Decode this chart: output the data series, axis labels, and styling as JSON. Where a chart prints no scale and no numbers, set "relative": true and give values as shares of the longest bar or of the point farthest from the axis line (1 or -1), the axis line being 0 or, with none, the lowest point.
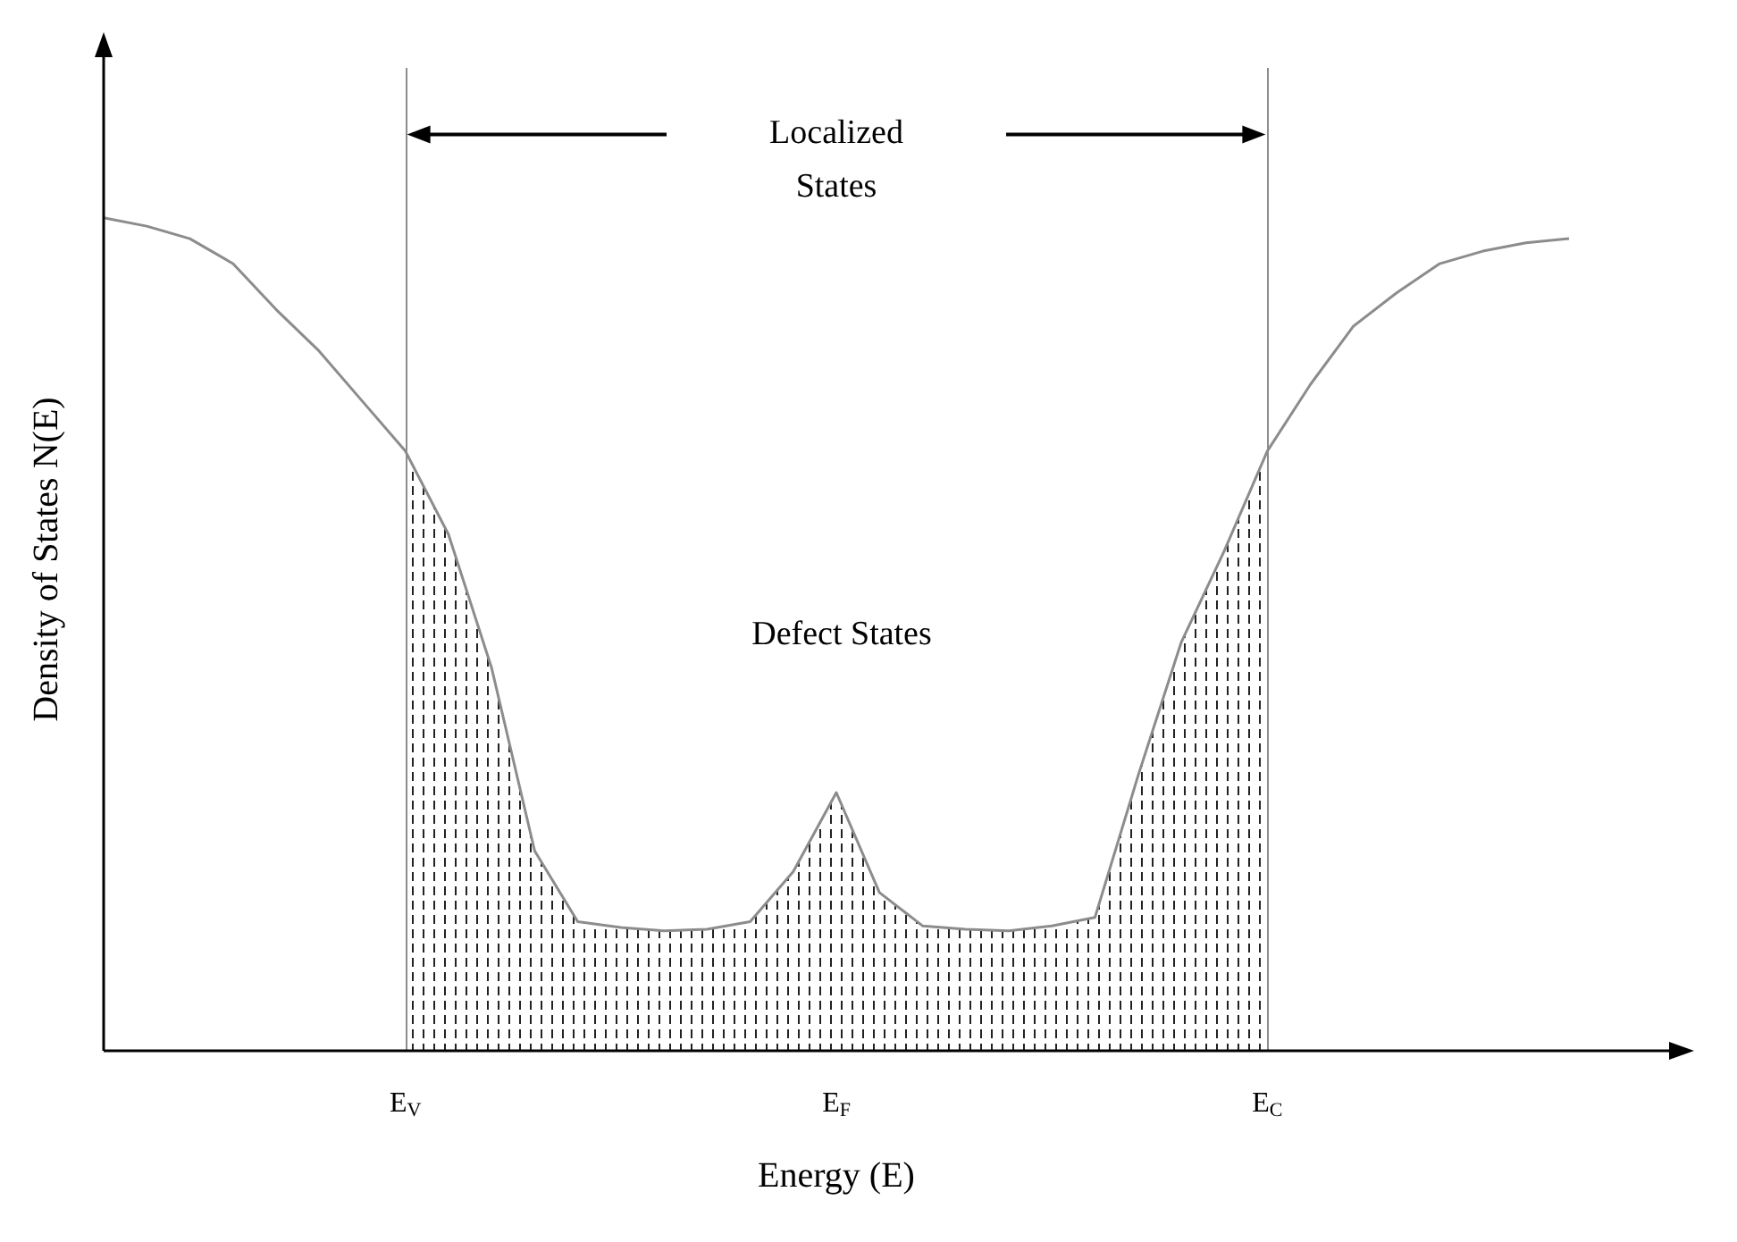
{
  "chart_data": {
    "type": "line",
    "relative": true,
    "xlabel": "Energy (E)",
    "ylabel": "Density of States N(E)",
    "categories": [
      null,
      null,
      null,
      null,
      null,
      null,
      null,
      "E$_{V}$",
      null,
      null,
      null,
      null,
      null,
      null,
      null,
      null,
      null,
      "E$_{F}$",
      null,
      null,
      null,
      null,
      null,
      null,
      null,
      null,
      null,
      "E$_{C}$",
      null,
      null,
      null,
      null,
      null,
      null,
      null
    ],
    "tick_labels": "x",
    "grid": false,
    "marker": "none",
    "series": [
      {
        "color": "#8c8c8c",
        "line_style": "solid",
        "values": [
          1.0,
          0.99,
          0.975,
          0.945,
          0.89,
          0.84,
          0.78,
          0.72,
          0.62,
          0.46,
          0.24,
          0.155,
          0.148,
          0.144,
          0.146,
          0.155,
          0.215,
          0.31,
          0.19,
          0.15,
          0.146,
          0.144,
          0.15,
          0.16,
          0.33,
          0.49,
          0.6,
          0.72,
          0.8,
          0.87,
          0.91,
          0.945,
          0.96,
          0.97,
          0.975
        ]
      },
      {
        "type": "area",
        "color": "#222222",
        "values": [
          null,
          null,
          null,
          null,
          null,
          null,
          null,
          0.72,
          0.62,
          0.46,
          0.24,
          0.155,
          0.148,
          0.144,
          0.146,
          0.155,
          0.215,
          0.31,
          0.19,
          0.15,
          0.146,
          0.144,
          0.15,
          0.16,
          0.33,
          0.49,
          0.6,
          0.72,
          null,
          null,
          null,
          null,
          null,
          null,
          null
        ]
      }
    ],
    "ref_lines": [
      {
        "axis": "x",
        "value": "E$_{V}$",
        "color": "#8c8c8c"
      },
      {
        "axis": "x",
        "value": "E$_{C}$",
        "color": "#8c8c8c"
      }
    ],
    "annotations": [
      "Localized\nStates",
      "Defect States"
    ]
  }
}
